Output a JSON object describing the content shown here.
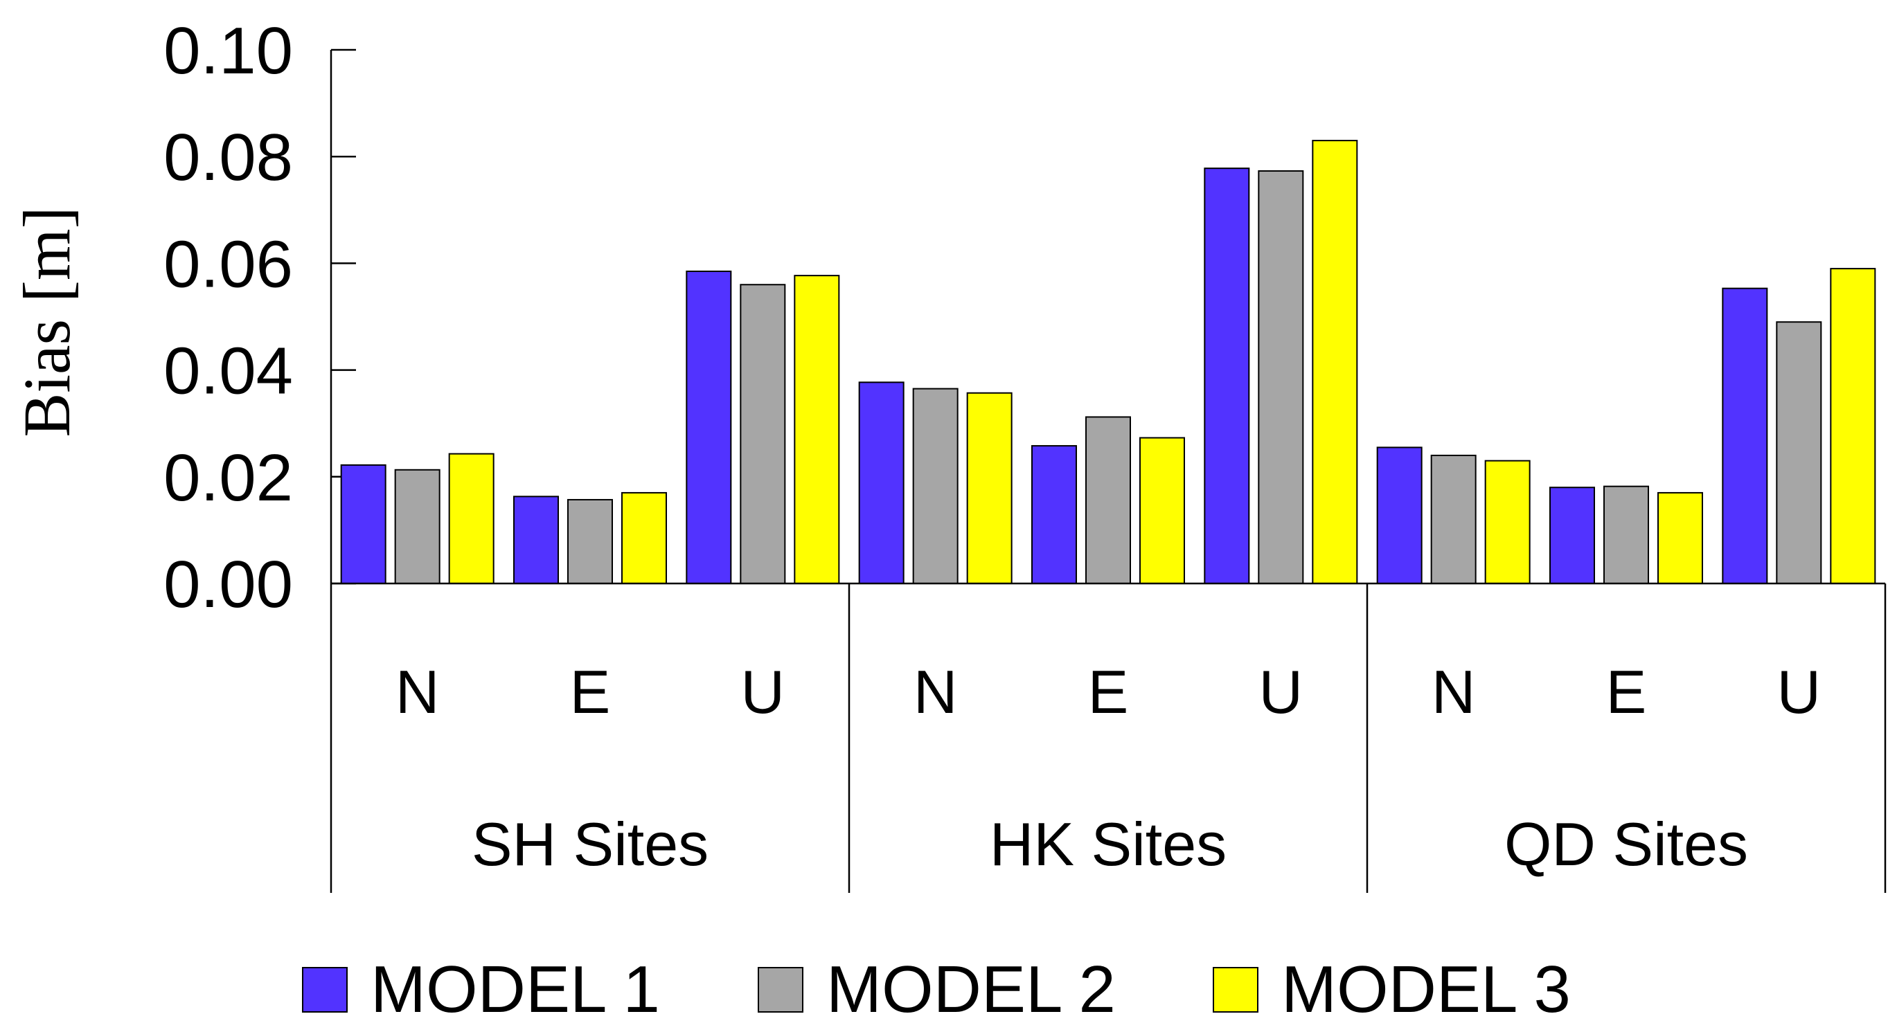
{
  "chart_data": {
    "type": "bar",
    "title": "",
    "xlabel": "",
    "ylabel": "Bias [m]",
    "ylim": [
      0,
      0.1
    ],
    "yticks": [
      "0.00",
      "0.02",
      "0.04",
      "0.06",
      "0.08",
      "0.10"
    ],
    "grid": false,
    "legend_position": "bottom",
    "groups": [
      "SH Sites",
      "HK Sites",
      "QD Sites"
    ],
    "categories": [
      "N",
      "E",
      "U"
    ],
    "series": [
      {
        "name": "MODEL 1",
        "color": "#5233ff",
        "values": [
          [
            0.0222,
            0.0163,
            0.0585
          ],
          [
            0.0377,
            0.0258,
            0.0778
          ],
          [
            0.0255,
            0.018,
            0.0553
          ]
        ]
      },
      {
        "name": "MODEL 2",
        "color": "#a6a6a6",
        "values": [
          [
            0.0213,
            0.0157,
            0.056
          ],
          [
            0.0365,
            0.0312,
            0.0773
          ],
          [
            0.024,
            0.0182,
            0.049
          ]
        ]
      },
      {
        "name": "MODEL 3",
        "color": "#ffff00",
        "values": [
          [
            0.0243,
            0.017,
            0.0577
          ],
          [
            0.0357,
            0.0273,
            0.083
          ],
          [
            0.023,
            0.017,
            0.059
          ]
        ]
      }
    ]
  }
}
